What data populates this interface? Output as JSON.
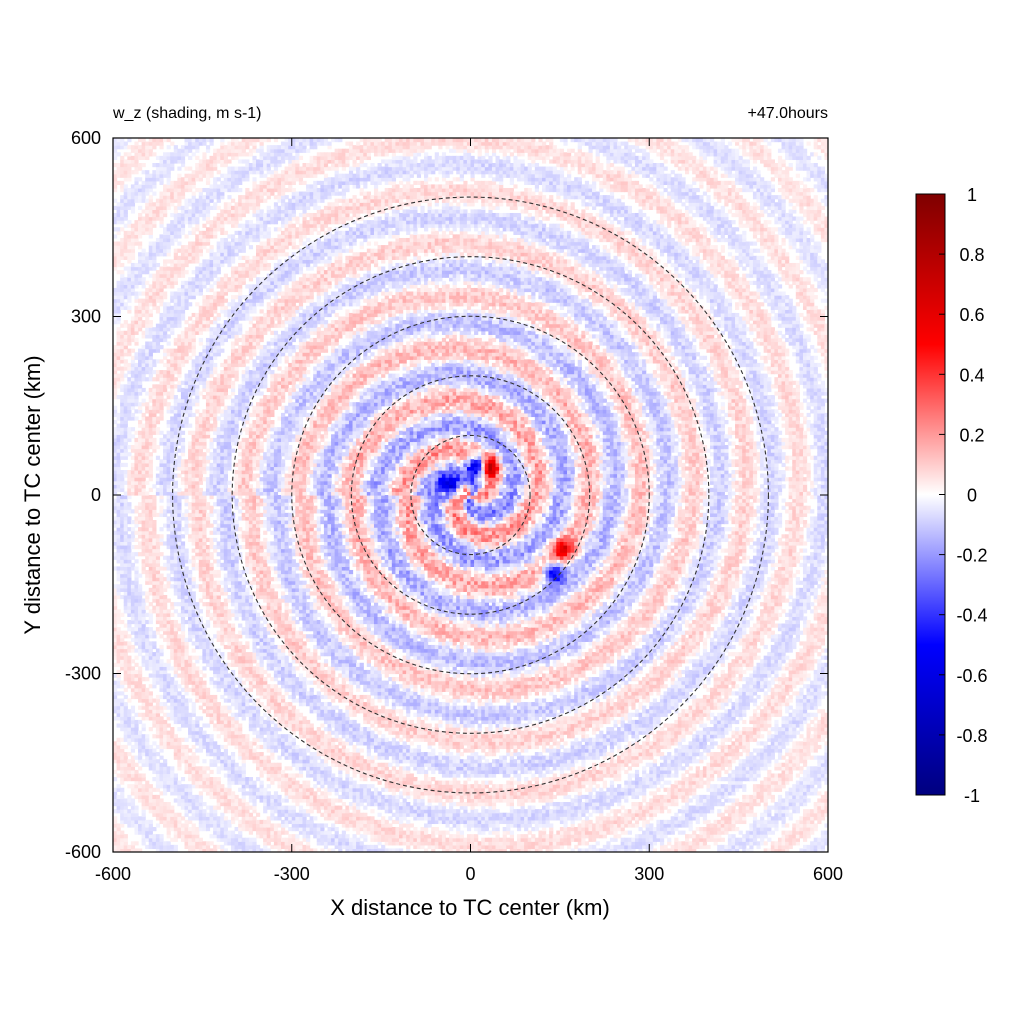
{
  "chart_data": {
    "type": "heatmap",
    "title_left": "w_z (shading, m s-1)",
    "title_right": "+47.0hours",
    "xlabel": "X distance to TC center (km)",
    "ylabel": "Y distance to TC center (km)",
    "xlim": [
      -600,
      600
    ],
    "ylim": [
      -600,
      600
    ],
    "xticks": [
      "-600",
      "-300",
      "0",
      "300",
      "600"
    ],
    "yticks": [
      "600",
      "300",
      "0",
      "-300",
      "-600"
    ],
    "ring_radii_km": [
      100,
      200,
      300,
      400,
      500
    ],
    "ring_style": "dashed",
    "colorbar": {
      "min": -1,
      "max": 1,
      "ticks": [
        "1",
        "0.8",
        "0.6",
        "0.4",
        "0.2",
        "0",
        "-0.2",
        "-0.4",
        "-0.6",
        "-0.8",
        "-1"
      ],
      "colormap": [
        "#00007f",
        "#0000ff",
        "#ffffff",
        "#ff0000",
        "#7f0000"
      ]
    },
    "features": [
      {
        "x_km": 15,
        "y_km": 50,
        "value": -1.0
      },
      {
        "x_km": 30,
        "y_km": 50,
        "value": 0.9
      },
      {
        "x_km": -35,
        "y_km": 15,
        "value": -0.7
      },
      {
        "x_km": 140,
        "y_km": -130,
        "value": -0.6
      },
      {
        "x_km": 155,
        "y_km": -90,
        "value": 0.5
      }
    ]
  }
}
